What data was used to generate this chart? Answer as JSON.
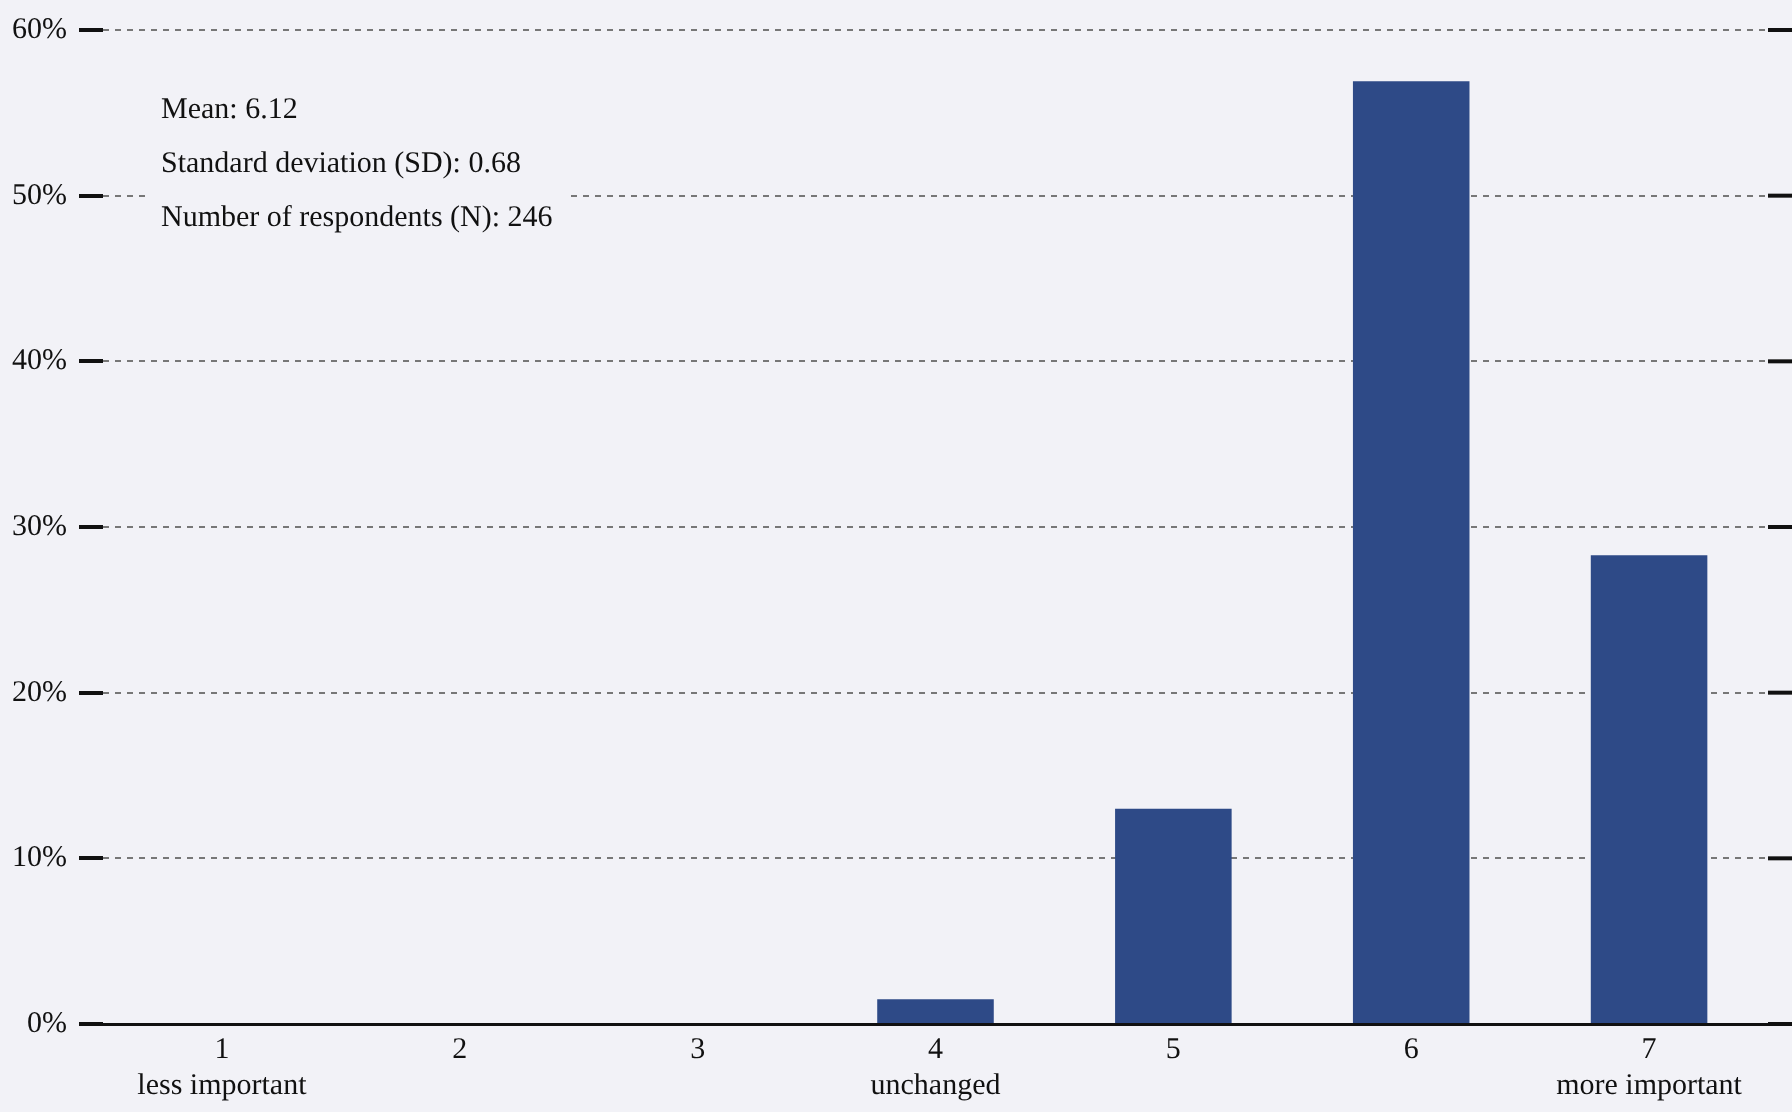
{
  "chart_data": {
    "type": "bar",
    "categories": [
      "1\nless important",
      "2",
      "3",
      "4\nunchanged",
      "5",
      "6",
      "7\nmore important"
    ],
    "values": [
      0,
      0,
      0,
      1.5,
      13.0,
      56.9,
      28.3
    ],
    "color": "#2e4a87",
    "ylim": [
      0,
      60
    ],
    "yticks": [
      {
        "value": 0,
        "label": "0%"
      },
      {
        "value": 10,
        "label": "10%"
      },
      {
        "value": 20,
        "label": "20%"
      },
      {
        "value": 30,
        "label": "30%"
      },
      {
        "value": 40,
        "label": "40%"
      },
      {
        "value": 50,
        "label": "50%"
      },
      {
        "value": 60,
        "label": "60%"
      }
    ],
    "grid": "y",
    "legend": false,
    "annotations": [
      "Mean: 6.12",
      "Standard deviation (SD): 0.68",
      "Number of respondents (N): 246"
    ]
  }
}
